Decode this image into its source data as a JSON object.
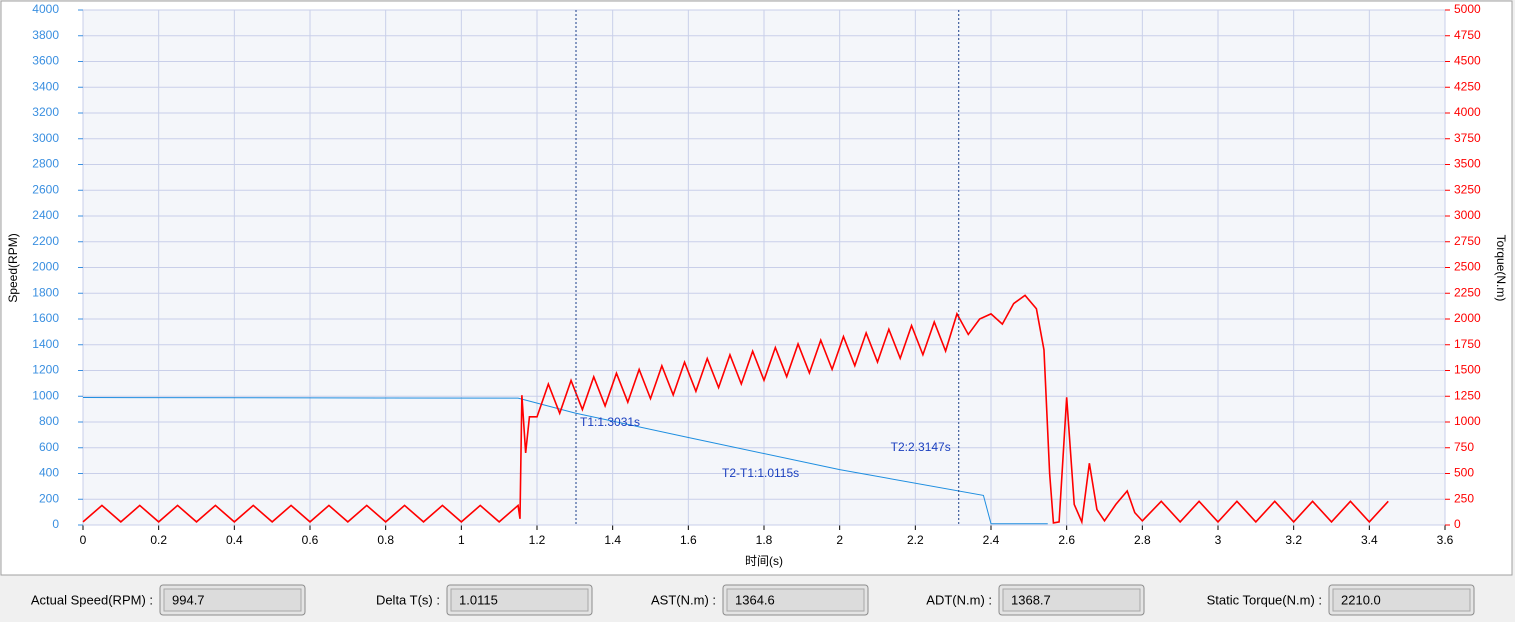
{
  "chart_data": {
    "type": "line",
    "x_label": "时间(s)",
    "y_label": "Speed(RPM)",
    "y2_label": "Torque(N.m)",
    "xlim": [
      0,
      3.6
    ],
    "xticks": [
      0,
      0.2,
      0.4,
      0.6,
      0.8,
      1,
      1.2,
      1.4,
      1.6,
      1.8,
      2,
      2.2,
      2.4,
      2.6,
      2.8,
      3,
      3.2,
      3.4,
      3.6
    ],
    "ylim": [
      0,
      4000
    ],
    "yticks": [
      0,
      200,
      400,
      600,
      800,
      1000,
      1200,
      1400,
      1600,
      1800,
      2000,
      2200,
      2400,
      2600,
      2800,
      3000,
      3200,
      3400,
      3600,
      3800,
      4000
    ],
    "y2lim": [
      0,
      5000
    ],
    "y2ticks": [
      0,
      250,
      500,
      750,
      1000,
      1250,
      1500,
      1750,
      2000,
      2250,
      2500,
      2750,
      3000,
      3250,
      3500,
      3750,
      4000,
      4250,
      4500,
      4750,
      5000
    ],
    "grid": true,
    "series": [
      {
        "name": "Speed",
        "color": "#1e8ee0",
        "axis": "y",
        "x": [
          0,
          1.15,
          1.3,
          1.6,
          2.0,
          2.38,
          2.4,
          2.55
        ],
        "values": [
          990,
          985,
          870,
          680,
          430,
          230,
          10,
          10
        ]
      },
      {
        "name": "Torque",
        "color": "#ff0000",
        "axis": "y2",
        "x": [
          0,
          0.05,
          0.1,
          0.15,
          0.2,
          0.25,
          0.3,
          0.35,
          0.4,
          0.45,
          0.5,
          0.55,
          0.6,
          0.65,
          0.7,
          0.75,
          0.8,
          0.85,
          0.9,
          0.95,
          1.0,
          1.05,
          1.1,
          1.15,
          1.155,
          1.16,
          1.17,
          1.18,
          1.2,
          1.23,
          1.26,
          1.29,
          1.32,
          1.35,
          1.38,
          1.41,
          1.44,
          1.47,
          1.5,
          1.53,
          1.56,
          1.59,
          1.62,
          1.65,
          1.68,
          1.71,
          1.74,
          1.77,
          1.8,
          1.83,
          1.86,
          1.89,
          1.92,
          1.95,
          1.98,
          2.01,
          2.04,
          2.07,
          2.1,
          2.13,
          2.16,
          2.19,
          2.22,
          2.25,
          2.28,
          2.31,
          2.34,
          2.37,
          2.4,
          2.43,
          2.46,
          2.49,
          2.52,
          2.54,
          2.555,
          2.565,
          2.58,
          2.6,
          2.62,
          2.64,
          2.66,
          2.68,
          2.7,
          2.73,
          2.76,
          2.78,
          2.8,
          2.85,
          2.9,
          2.95,
          3.0,
          3.05,
          3.1,
          3.15,
          3.2,
          3.25,
          3.3,
          3.35,
          3.4,
          3.45
        ],
        "values": [
          30,
          190,
          30,
          190,
          30,
          190,
          30,
          190,
          30,
          190,
          30,
          190,
          30,
          190,
          30,
          190,
          30,
          190,
          30,
          190,
          30,
          190,
          30,
          190,
          60,
          1260,
          700,
          1050,
          1050,
          1368,
          1085,
          1403,
          1121,
          1439,
          1156,
          1474,
          1192,
          1510,
          1227,
          1545,
          1263,
          1581,
          1298,
          1616,
          1334,
          1652,
          1369,
          1687,
          1405,
          1723,
          1440,
          1758,
          1476,
          1794,
          1511,
          1829,
          1547,
          1865,
          1582,
          1900,
          1618,
          1936,
          1653,
          1971,
          1689,
          2050,
          1850,
          2000,
          2050,
          1950,
          2150,
          2230,
          2100,
          1700,
          500,
          20,
          30,
          1240,
          200,
          30,
          600,
          150,
          40,
          200,
          330,
          120,
          40,
          230,
          30,
          230,
          30,
          230,
          30,
          230,
          30,
          230,
          30,
          230,
          30,
          230
        ]
      }
    ],
    "cursors": [
      {
        "x": 1.3031,
        "label": "T1:1.3031s"
      },
      {
        "x": 2.3147,
        "label": "T2:2.3147s"
      }
    ],
    "annotation": "T2-T1:1.0115s"
  },
  "fields": [
    {
      "label": "Actual Speed(RPM) :",
      "value": "994.7"
    },
    {
      "label": "Delta T(s) :",
      "value": "1.0115"
    },
    {
      "label": "AST(N.m) :",
      "value": "1364.6"
    },
    {
      "label": "ADT(N.m) :",
      "value": "1368.7"
    },
    {
      "label": "Static Torque(N.m) :",
      "value": "2210.0"
    }
  ]
}
